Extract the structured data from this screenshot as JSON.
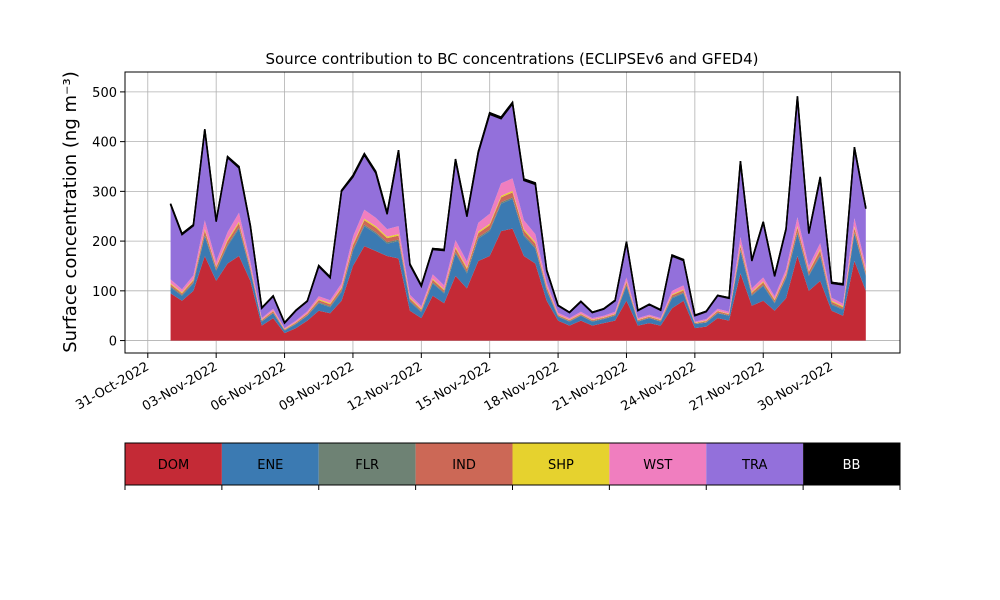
{
  "chart_data": {
    "type": "area",
    "title": "Source contribution to BC concentrations (ECLIPSEv6 and GFED4)",
    "ylabel": "Surface concentration (ng m⁻³)",
    "xlabel": "",
    "xlim": [
      "2022-10-30",
      "2022-12-03"
    ],
    "ylim": [
      -25,
      540
    ],
    "grid": true,
    "yticks": [
      0,
      100,
      200,
      300,
      400,
      500
    ],
    "xticks": [
      "31-Oct-2022",
      "03-Nov-2022",
      "06-Nov-2022",
      "09-Nov-2022",
      "12-Nov-2022",
      "15-Nov-2022",
      "18-Nov-2022",
      "21-Nov-2022",
      "24-Nov-2022",
      "27-Nov-2022",
      "30-Nov-2022"
    ],
    "x": [
      "2022-11-01",
      "2022-11-01T12:00",
      "2022-11-02",
      "2022-11-02T12:00",
      "2022-11-03",
      "2022-11-03T12:00",
      "2022-11-04",
      "2022-11-04T12:00",
      "2022-11-05",
      "2022-11-05T12:00",
      "2022-11-06",
      "2022-11-06T12:00",
      "2022-11-07",
      "2022-11-07T12:00",
      "2022-11-08",
      "2022-11-08T12:00",
      "2022-11-09",
      "2022-11-09T12:00",
      "2022-11-10",
      "2022-11-10T12:00",
      "2022-11-11",
      "2022-11-11T12:00",
      "2022-11-12",
      "2022-11-12T12:00",
      "2022-11-13",
      "2022-11-13T12:00",
      "2022-11-14",
      "2022-11-14T12:00",
      "2022-11-15",
      "2022-11-15T12:00",
      "2022-11-16",
      "2022-11-16T12:00",
      "2022-11-17",
      "2022-11-17T12:00",
      "2022-11-18",
      "2022-11-18T12:00",
      "2022-11-19",
      "2022-11-19T12:00",
      "2022-11-20",
      "2022-11-20T12:00",
      "2022-11-21",
      "2022-11-21T12:00",
      "2022-11-22",
      "2022-11-22T12:00",
      "2022-11-23",
      "2022-11-23T12:00",
      "2022-11-24",
      "2022-11-24T12:00",
      "2022-11-25",
      "2022-11-25T12:00",
      "2022-11-26",
      "2022-11-26T12:00",
      "2022-11-27",
      "2022-11-27T12:00",
      "2022-11-28",
      "2022-11-28T12:00",
      "2022-11-29",
      "2022-11-29T12:00",
      "2022-11-30",
      "2022-11-30T12:00",
      "2022-12-01",
      "2022-12-01T12:00"
    ],
    "series": [
      {
        "name": "DOM",
        "color": "#c42a36",
        "values": [
          95,
          80,
          100,
          170,
          120,
          155,
          170,
          120,
          30,
          45,
          15,
          25,
          40,
          60,
          55,
          80,
          150,
          190,
          180,
          170,
          165,
          60,
          45,
          90,
          75,
          130,
          105,
          160,
          170,
          220,
          225,
          170,
          155,
          80,
          40,
          30,
          40,
          30,
          35,
          40,
          80,
          30,
          35,
          30,
          65,
          80,
          25,
          28,
          45,
          40,
          135,
          70,
          80,
          60,
          85,
          170,
          100,
          120,
          60,
          50,
          160,
          100
        ]
      },
      {
        "name": "ENE",
        "color": "#3b7ab2",
        "values": [
          12,
          10,
          15,
          40,
          20,
          35,
          55,
          20,
          8,
          10,
          5,
          8,
          10,
          15,
          12,
          18,
          30,
          40,
          35,
          25,
          35,
          18,
          12,
          25,
          20,
          45,
          30,
          45,
          50,
          55,
          60,
          40,
          30,
          20,
          8,
          8,
          10,
          8,
          8,
          10,
          30,
          8,
          10,
          8,
          20,
          15,
          8,
          8,
          10,
          10,
          45,
          20,
          30,
          15,
          40,
          45,
          30,
          50,
          12,
          12,
          55,
          30
        ]
      },
      {
        "name": "FLR",
        "color": "#6e8274",
        "values": [
          2,
          2,
          2,
          3,
          2,
          3,
          3,
          2,
          1,
          1,
          1,
          1,
          1,
          2,
          2,
          2,
          3,
          3,
          3,
          3,
          3,
          2,
          2,
          2,
          2,
          3,
          3,
          3,
          3,
          3,
          3,
          3,
          3,
          2,
          1,
          1,
          1,
          1,
          1,
          1,
          2,
          1,
          1,
          1,
          2,
          2,
          1,
          1,
          1,
          1,
          3,
          2,
          2,
          2,
          2,
          3,
          2,
          3,
          2,
          2,
          3,
          2
        ]
      },
      {
        "name": "IND",
        "color": "#cc6856",
        "values": [
          4,
          3,
          4,
          8,
          5,
          7,
          8,
          5,
          2,
          3,
          1,
          2,
          3,
          4,
          4,
          5,
          8,
          9,
          9,
          8,
          8,
          4,
          3,
          5,
          4,
          7,
          6,
          8,
          9,
          10,
          10,
          8,
          7,
          5,
          2,
          2,
          2,
          2,
          2,
          2,
          5,
          2,
          2,
          2,
          4,
          4,
          1,
          2,
          3,
          2,
          7,
          4,
          5,
          4,
          5,
          9,
          6,
          8,
          4,
          3,
          8,
          6
        ]
      },
      {
        "name": "SHP",
        "color": "#e6d22e",
        "values": [
          2,
          2,
          2,
          3,
          2,
          3,
          3,
          2,
          1,
          1,
          1,
          1,
          1,
          2,
          2,
          2,
          3,
          3,
          3,
          3,
          3,
          2,
          2,
          2,
          2,
          3,
          3,
          3,
          3,
          3,
          3,
          3,
          3,
          2,
          1,
          1,
          1,
          1,
          1,
          1,
          2,
          1,
          1,
          1,
          2,
          2,
          1,
          1,
          1,
          1,
          3,
          2,
          2,
          2,
          2,
          3,
          2,
          3,
          2,
          2,
          3,
          2
        ]
      },
      {
        "name": "WST",
        "color": "#f07ebf",
        "values": [
          8,
          6,
          8,
          18,
          10,
          15,
          18,
          10,
          3,
          4,
          2,
          3,
          4,
          6,
          6,
          8,
          15,
          18,
          17,
          15,
          16,
          6,
          5,
          9,
          8,
          14,
          12,
          18,
          20,
          25,
          25,
          18,
          16,
          8,
          4,
          3,
          4,
          3,
          3,
          4,
          8,
          3,
          3,
          3,
          7,
          8,
          2,
          3,
          4,
          4,
          15,
          7,
          8,
          6,
          9,
          18,
          10,
          12,
          6,
          5,
          17,
          10
        ]
      },
      {
        "name": "TRA",
        "color": "#9370db",
        "values": [
          150,
          110,
          100,
          180,
          80,
          150,
          90,
          70,
          20,
          25,
          10,
          20,
          20,
          60,
          45,
          185,
          120,
          110,
          90,
          30,
          150,
          60,
          40,
          50,
          70,
          160,
          90,
          140,
          200,
          130,
          150,
          80,
          100,
          23,
          14,
          11,
          20,
          11,
          13,
          22,
          70,
          15,
          20,
          16,
          70,
          50,
          12,
          15,
          26,
          27,
          150,
          55,
          110,
          40,
          80,
          240,
          65,
          130,
          29,
          38,
          140,
          115
        ]
      },
      {
        "name": "BB",
        "color": "#000000",
        "values": [
          2,
          2,
          2,
          3,
          2,
          2,
          3,
          2,
          1,
          1,
          1,
          1,
          1,
          2,
          2,
          2,
          3,
          3,
          3,
          3,
          3,
          2,
          2,
          2,
          2,
          3,
          3,
          3,
          3,
          3,
          3,
          3,
          3,
          2,
          1,
          1,
          1,
          1,
          1,
          1,
          2,
          1,
          1,
          1,
          2,
          2,
          1,
          1,
          1,
          1,
          3,
          2,
          2,
          2,
          2,
          3,
          2,
          3,
          2,
          2,
          3,
          2
        ]
      }
    ]
  }
}
